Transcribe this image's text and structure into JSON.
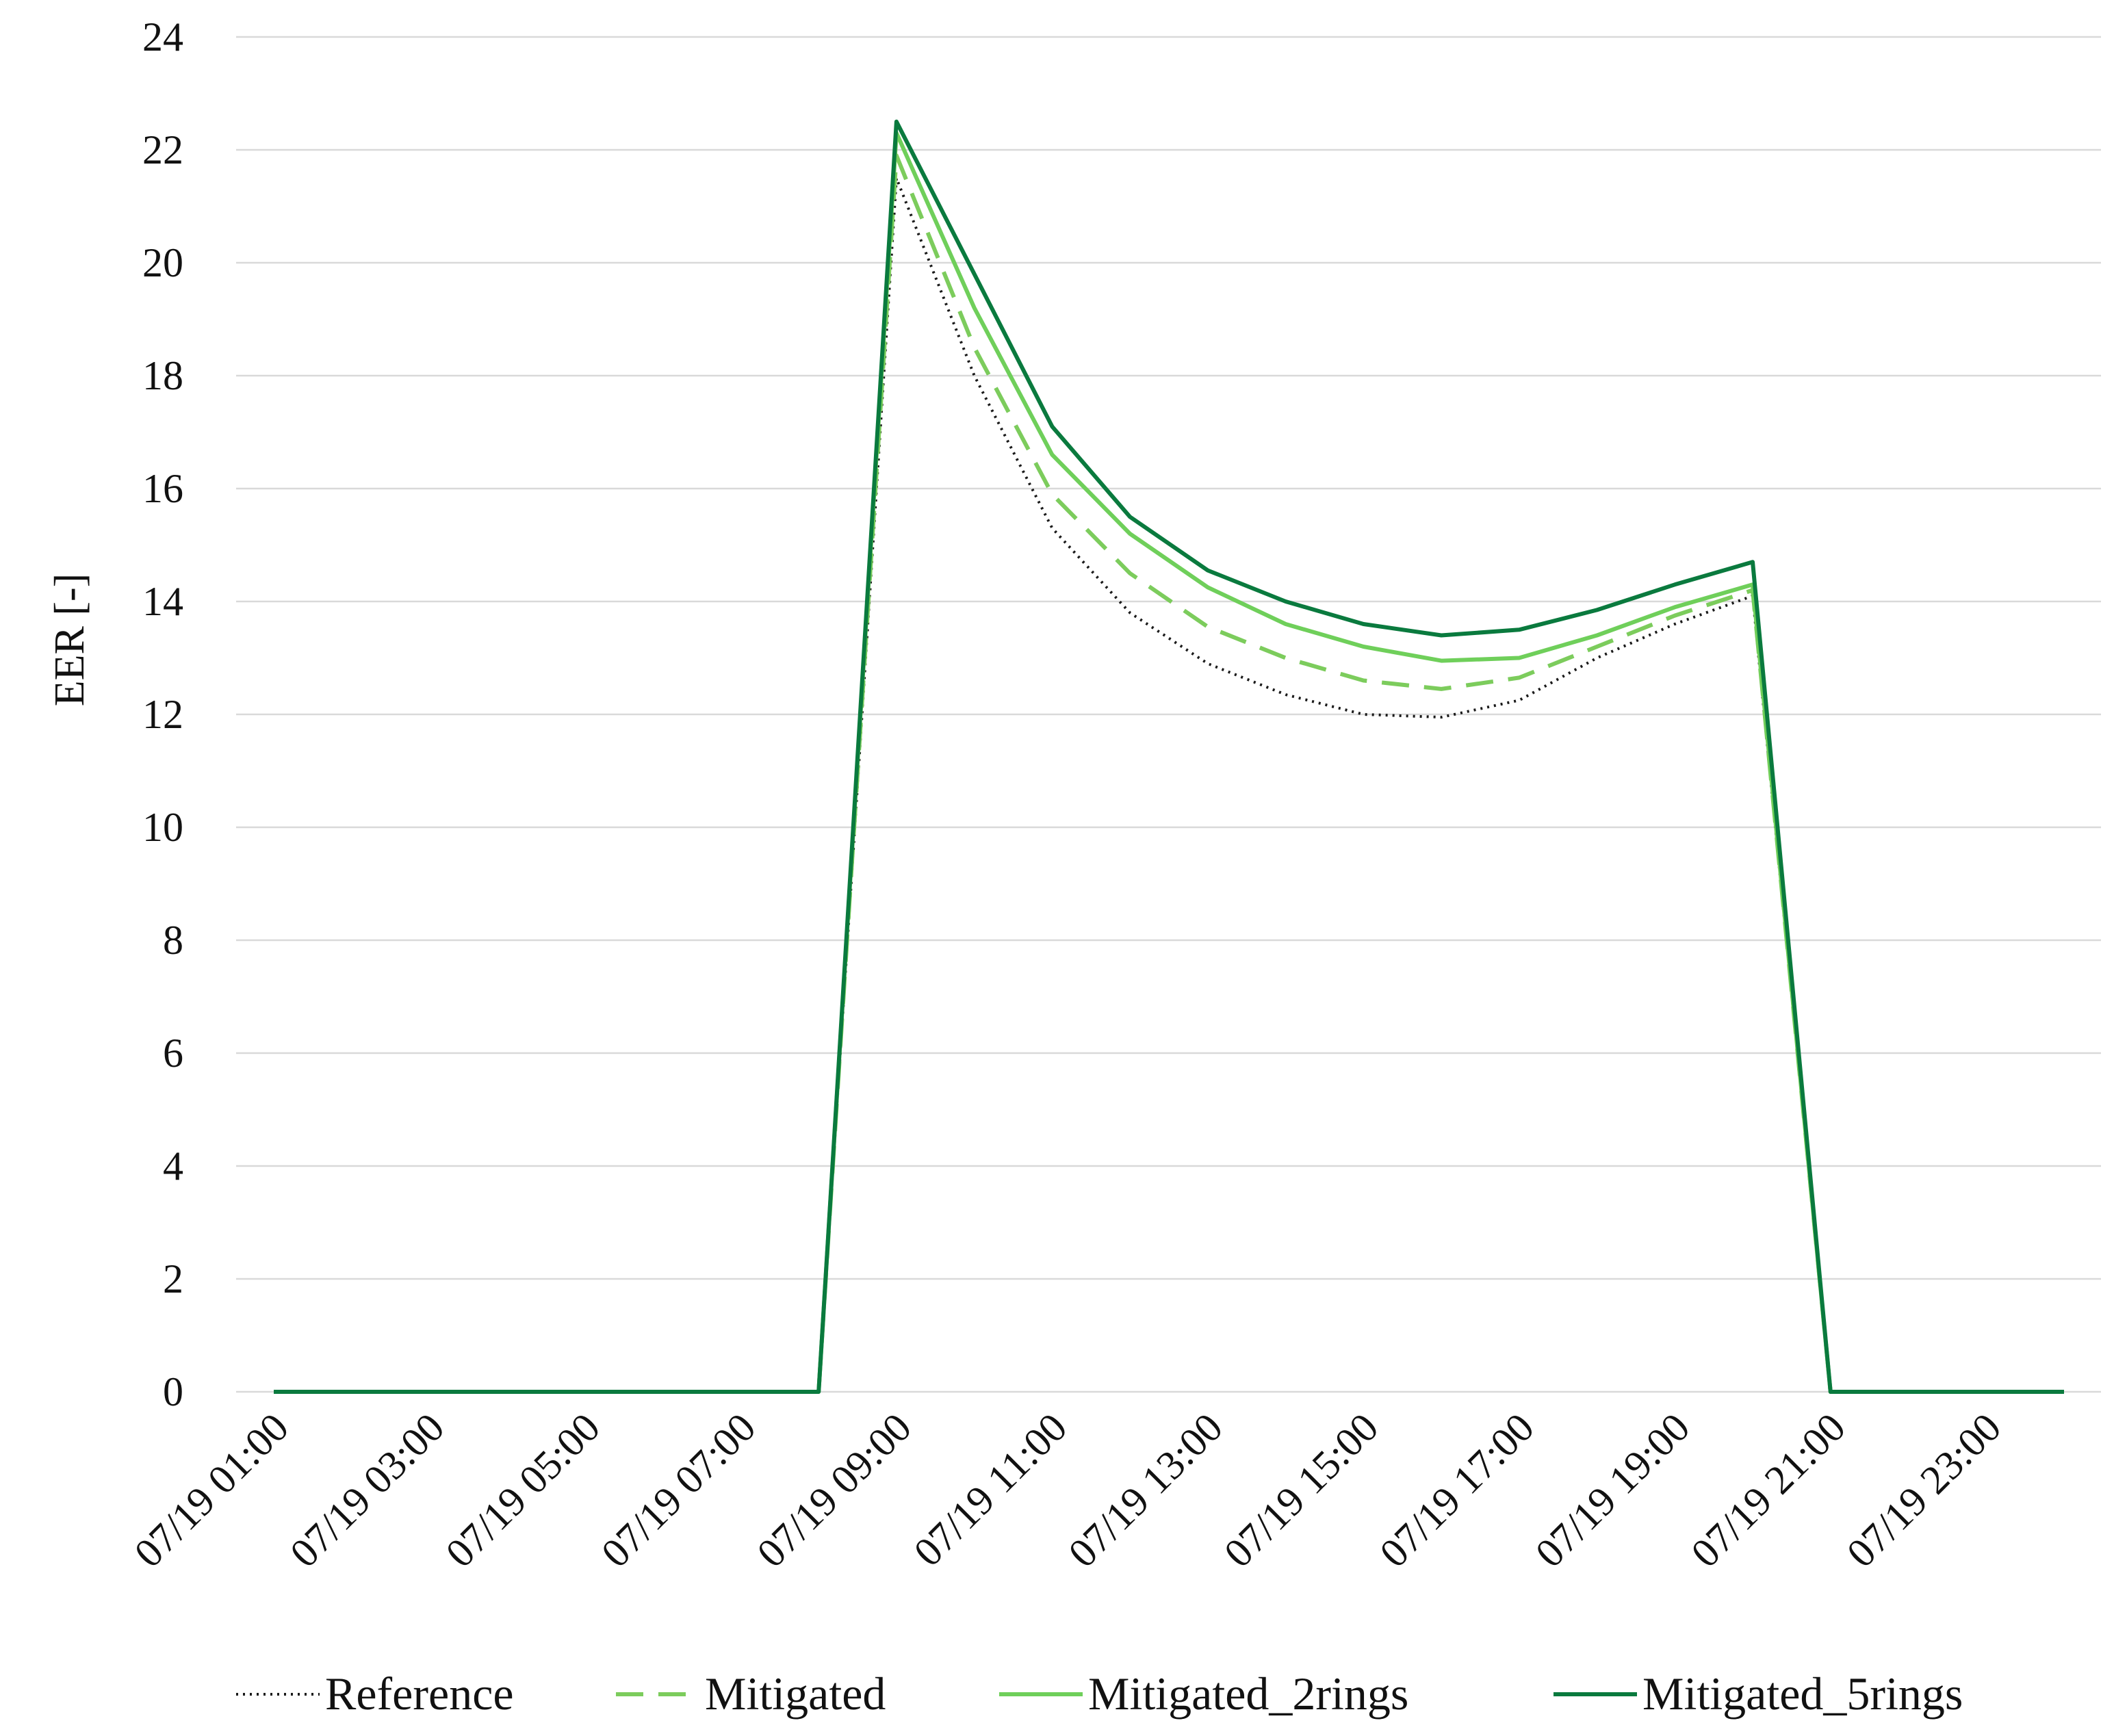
{
  "chart_data": {
    "type": "line",
    "title": "",
    "xlabel": "",
    "ylabel": "EER [-]",
    "ylim": [
      0,
      24
    ],
    "yticks": [
      0,
      2,
      4,
      6,
      8,
      10,
      12,
      14,
      16,
      18,
      20,
      22,
      24
    ],
    "grid": true,
    "legend_position": "bottom",
    "x": [
      "07/19 01:00",
      "07/19 02:00",
      "07/19 03:00",
      "07/19 04:00",
      "07/19 05:00",
      "07/19 06:00",
      "07/19 07:00",
      "07/19 08:00",
      "07/19 09:00",
      "07/19 10:00",
      "07/19 11:00",
      "07/19 12:00",
      "07/19 13:00",
      "07/19 14:00",
      "07/19 15:00",
      "07/19 16:00",
      "07/19 17:00",
      "07/19 18:00",
      "07/19 19:00",
      "07/19 20:00",
      "07/19 21:00",
      "07/19 22:00",
      "07/19 23:00",
      "07/19 24:00"
    ],
    "x_tick_labels": [
      "07/19 01:00",
      "07/19 03:00",
      "07/19 05:00",
      "07/19 07:00",
      "07/19 09:00",
      "07/19 11:00",
      "07/19 13:00",
      "07/19 15:00",
      "07/19 17:00",
      "07/19 19:00",
      "07/19 21:00",
      "07/19 23:00"
    ],
    "series": [
      {
        "name": "Reference",
        "color": "#1a1a1a",
        "style": "dotted",
        "values": [
          0,
          0,
          0,
          0,
          0,
          0,
          0,
          0,
          21.5,
          18.0,
          15.3,
          13.8,
          12.9,
          12.35,
          12.0,
          11.95,
          12.25,
          13.0,
          13.6,
          14.1,
          0,
          0,
          0,
          0
        ]
      },
      {
        "name": "Mitigated",
        "color": "#7ccc5c",
        "style": "dashed",
        "values": [
          0,
          0,
          0,
          0,
          0,
          0,
          0,
          0,
          21.9,
          18.5,
          15.9,
          14.5,
          13.55,
          13.0,
          12.6,
          12.45,
          12.65,
          13.2,
          13.75,
          14.2,
          0,
          0,
          0,
          0
        ]
      },
      {
        "name": "Mitigated_2rings",
        "color": "#6fcf5a",
        "style": "solid",
        "values": [
          0,
          0,
          0,
          0,
          0,
          0,
          0,
          0,
          22.3,
          19.2,
          16.6,
          15.2,
          14.25,
          13.6,
          13.2,
          12.95,
          13.0,
          13.4,
          13.9,
          14.3,
          0,
          0,
          0,
          0
        ]
      },
      {
        "name": "Mitigated_5rings",
        "color": "#0a7a3e",
        "style": "solid",
        "values": [
          0,
          0,
          0,
          0,
          0,
          0,
          0,
          0,
          22.5,
          19.8,
          17.1,
          15.5,
          14.55,
          14.0,
          13.6,
          13.4,
          13.5,
          13.85,
          14.3,
          14.7,
          0,
          0,
          0,
          0
        ]
      }
    ]
  }
}
